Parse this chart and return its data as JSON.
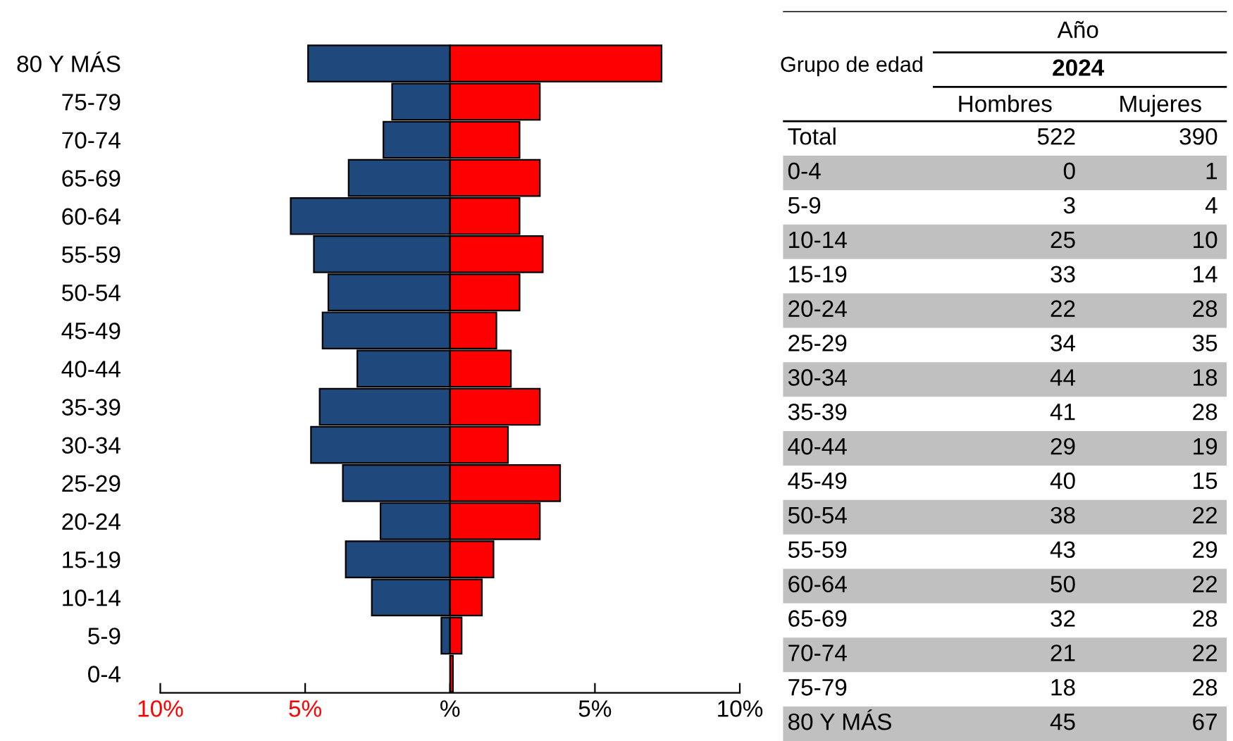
{
  "chart_data": [
    {
      "type": "bar",
      "orientation": "horizontal",
      "categories": [
        "80 Y MÁS",
        "75-79",
        "70-74",
        "65-69",
        "60-64",
        "55-59",
        "50-54",
        "45-49",
        "40-44",
        "35-39",
        "30-34",
        "25-29",
        "20-24",
        "15-19",
        "10-14",
        "5-9",
        "0-4"
      ],
      "series": [
        {
          "color": "#1f487c",
          "values": [
            -4.9,
            -2.0,
            -2.3,
            -3.5,
            -5.5,
            -4.7,
            -4.2,
            -4.4,
            -3.2,
            -4.5,
            -4.8,
            -3.7,
            -2.4,
            -3.6,
            -2.7,
            -0.3,
            0.0
          ]
        },
        {
          "color": "#ff0000",
          "values": [
            7.3,
            3.1,
            2.4,
            3.1,
            2.4,
            3.2,
            2.4,
            1.6,
            2.1,
            3.1,
            2.0,
            3.8,
            3.1,
            1.5,
            1.1,
            0.4,
            0.1
          ]
        }
      ],
      "xlim": [
        -10,
        10
      ],
      "xticks": [
        {
          "value": -10,
          "label": "10%"
        },
        {
          "value": -5,
          "label": "5%"
        },
        {
          "value": 0,
          "label": "%"
        },
        {
          "value": 5,
          "label": "5%"
        },
        {
          "value": 10,
          "label": "10%"
        }
      ],
      "tick_labels": "xy",
      "grid": false,
      "legend": false,
      "stacked": true
    },
    {
      "type": "other",
      "title": "Año",
      "subtitle": "2024",
      "ylabel": "Grupo de edad",
      "categories": [
        "Total",
        "0-4",
        "5-9",
        "10-14",
        "15-19",
        "20-24",
        "25-29",
        "30-34",
        "35-39",
        "40-44",
        "45-49",
        "50-54",
        "55-59",
        "60-64",
        "65-69",
        "70-74",
        "75-79",
        "80 Y MÁS"
      ],
      "series": [
        {
          "name": "Hombres",
          "values": [
            522,
            0,
            3,
            25,
            33,
            22,
            34,
            44,
            41,
            29,
            40,
            38,
            43,
            50,
            32,
            21,
            18,
            45
          ]
        },
        {
          "name": "Mujeres",
          "values": [
            390,
            1,
            4,
            10,
            14,
            28,
            35,
            18,
            28,
            19,
            15,
            22,
            29,
            22,
            28,
            22,
            28,
            67
          ]
        }
      ],
      "data_labels": true
    }
  ]
}
